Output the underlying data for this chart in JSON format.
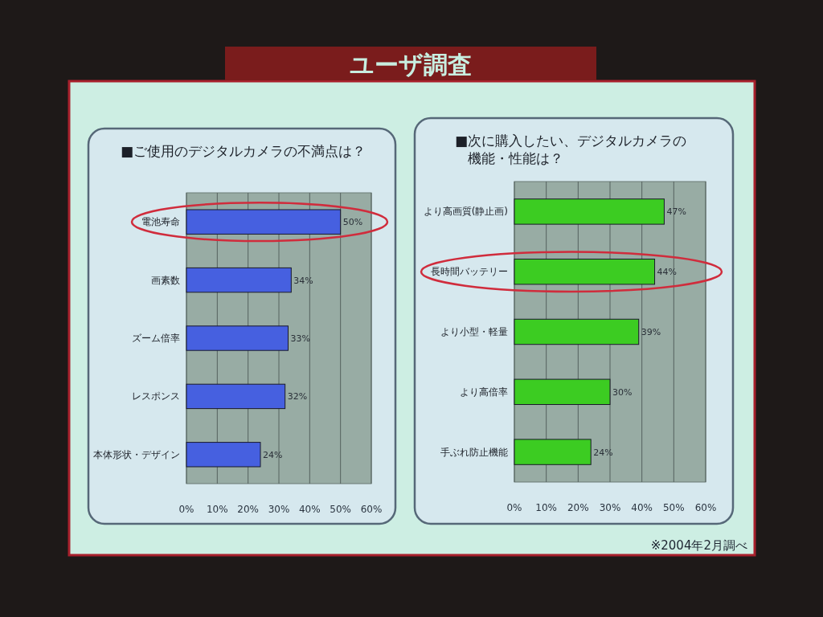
{
  "chart_data": [
    {
      "type": "other",
      "title": "ユーザ調査"
    },
    {
      "type": "bar",
      "orientation": "horizontal",
      "title": "■ご使用のデジタルカメラの不満点は？",
      "categories": [
        "電池寿命",
        "画素数",
        "ズーム倍率",
        "レスポンス",
        "本体形状・デザイン"
      ],
      "values": [
        50,
        34,
        33,
        32,
        24
      ],
      "value_labels": [
        "50%",
        "34%",
        "33%",
        "32%",
        "24%"
      ],
      "color": "#4660e0",
      "xlim": [
        0,
        60
      ],
      "xticks": [
        {
          "value": 0,
          "label": "0%"
        },
        {
          "value": 10,
          "label": "10%"
        },
        {
          "value": 20,
          "label": "20%"
        },
        {
          "value": 30,
          "label": "30%"
        },
        {
          "value": 40,
          "label": "40%"
        },
        {
          "value": 50,
          "label": "50%"
        },
        {
          "value": 60,
          "label": "60%"
        }
      ],
      "grid": "x"
    },
    {
      "type": "bar",
      "orientation": "horizontal",
      "title": "■次に購入したい、デジタルカメラの機能・性能は？",
      "categories": [
        "より高画質(静止画)",
        "長時間バッテリー",
        "より小型・軽量",
        "より高倍率",
        "手ぶれ防止機能"
      ],
      "values": [
        47,
        44,
        39,
        30,
        24
      ],
      "value_labels": [
        "47%",
        "44%",
        "39%",
        "30%",
        "24%"
      ],
      "color": "#3ccc22",
      "xlim": [
        0,
        60
      ],
      "xticks": [
        {
          "value": 0,
          "label": "0%"
        },
        {
          "value": 10,
          "label": "10%"
        },
        {
          "value": 20,
          "label": "20%"
        },
        {
          "value": 30,
          "label": "30%"
        },
        {
          "value": 40,
          "label": "40%"
        },
        {
          "value": 50,
          "label": "50%"
        },
        {
          "value": 60,
          "label": "60%"
        }
      ],
      "grid": "x",
      "annotations": [
        "※2004年2月調べ"
      ]
    }
  ]
}
